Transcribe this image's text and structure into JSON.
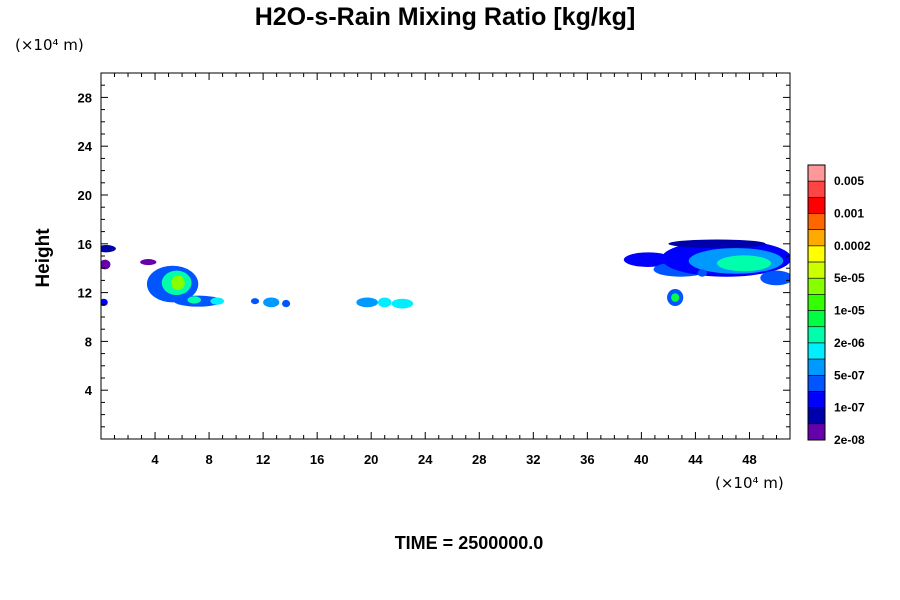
{
  "chart_data": {
    "type": "heatmap",
    "title": "H2O-s-Rain Mixing Ratio [kg/kg]",
    "ylabel": "Height",
    "y_unit": "(×10⁴ m)",
    "x_unit": "(×10⁴ m)",
    "time_label": "TIME = 2500000.0",
    "xlim": [
      0,
      51
    ],
    "ylim": [
      0,
      30
    ],
    "x_ticks": [
      4,
      8,
      12,
      16,
      20,
      24,
      28,
      32,
      36,
      40,
      44,
      48
    ],
    "y_ticks": [
      4,
      8,
      12,
      16,
      20,
      24,
      28
    ],
    "colorbar": {
      "labels": [
        "0.005",
        "0.001",
        "0.0002",
        "5e-05",
        "1e-05",
        "2e-06",
        "5e-07",
        "1e-07",
        "2e-08"
      ],
      "colors": [
        "#ff9999",
        "#ff4444",
        "#ff0000",
        "#ff6600",
        "#ffaa00",
        "#ffff00",
        "#ccff00",
        "#88ff00",
        "#33ff00",
        "#00ff44",
        "#00ffaa",
        "#00eeff",
        "#0099ff",
        "#0055ff",
        "#0000ff",
        "#0000aa",
        "#6600aa"
      ]
    },
    "regions": [
      {
        "x": 0.4,
        "y": 15.6,
        "rx": 0.7,
        "ry": 0.3,
        "level": 1
      },
      {
        "x": 0.3,
        "y": 14.3,
        "rx": 0.4,
        "ry": 0.4,
        "level": 0
      },
      {
        "x": 0.2,
        "y": 11.2,
        "rx": 0.3,
        "ry": 0.3,
        "level": 2
      },
      {
        "x": 3.5,
        "y": 14.5,
        "rx": 0.6,
        "ry": 0.25,
        "level": 0
      },
      {
        "x": 5.3,
        "y": 12.7,
        "rx": 1.9,
        "ry": 1.5,
        "level": 3
      },
      {
        "x": 5.6,
        "y": 12.8,
        "rx": 1.1,
        "ry": 1.0,
        "level": 6
      },
      {
        "x": 5.7,
        "y": 12.8,
        "rx": 0.5,
        "ry": 0.6,
        "level": 9
      },
      {
        "x": 7.2,
        "y": 11.3,
        "rx": 1.8,
        "ry": 0.45,
        "level": 3
      },
      {
        "x": 6.9,
        "y": 11.4,
        "rx": 0.5,
        "ry": 0.3,
        "level": 6
      },
      {
        "x": 8.6,
        "y": 11.3,
        "rx": 0.5,
        "ry": 0.3,
        "level": 5
      },
      {
        "x": 11.4,
        "y": 11.3,
        "rx": 0.3,
        "ry": 0.25,
        "level": 3
      },
      {
        "x": 12.6,
        "y": 11.2,
        "rx": 0.6,
        "ry": 0.4,
        "level": 4
      },
      {
        "x": 13.7,
        "y": 11.1,
        "rx": 0.3,
        "ry": 0.3,
        "level": 3
      },
      {
        "x": 19.7,
        "y": 11.2,
        "rx": 0.8,
        "ry": 0.4,
        "level": 4
      },
      {
        "x": 21.0,
        "y": 11.2,
        "rx": 0.5,
        "ry": 0.4,
        "level": 5
      },
      {
        "x": 22.3,
        "y": 11.1,
        "rx": 0.8,
        "ry": 0.4,
        "level": 5
      },
      {
        "x": 42.5,
        "y": 11.6,
        "rx": 0.6,
        "ry": 0.7,
        "level": 3
      },
      {
        "x": 42.5,
        "y": 11.6,
        "rx": 0.3,
        "ry": 0.35,
        "level": 7
      },
      {
        "x": 40.5,
        "y": 14.7,
        "rx": 1.8,
        "ry": 0.6,
        "level": 2
      },
      {
        "x": 42.9,
        "y": 13.9,
        "rx": 2.0,
        "ry": 0.6,
        "level": 3
      },
      {
        "x": 46.3,
        "y": 14.8,
        "rx": 4.8,
        "ry": 1.5,
        "level": 2
      },
      {
        "x": 47.0,
        "y": 14.6,
        "rx": 3.5,
        "ry": 1.05,
        "level": 4
      },
      {
        "x": 47.6,
        "y": 14.4,
        "rx": 2.0,
        "ry": 0.65,
        "level": 6
      },
      {
        "x": 45.6,
        "y": 16.0,
        "rx": 3.6,
        "ry": 0.35,
        "level": 1
      },
      {
        "x": 50.0,
        "y": 13.2,
        "rx": 1.2,
        "ry": 0.6,
        "level": 3
      },
      {
        "x": 44.5,
        "y": 13.6,
        "rx": 0.35,
        "ry": 0.3,
        "level": 3
      }
    ]
  }
}
